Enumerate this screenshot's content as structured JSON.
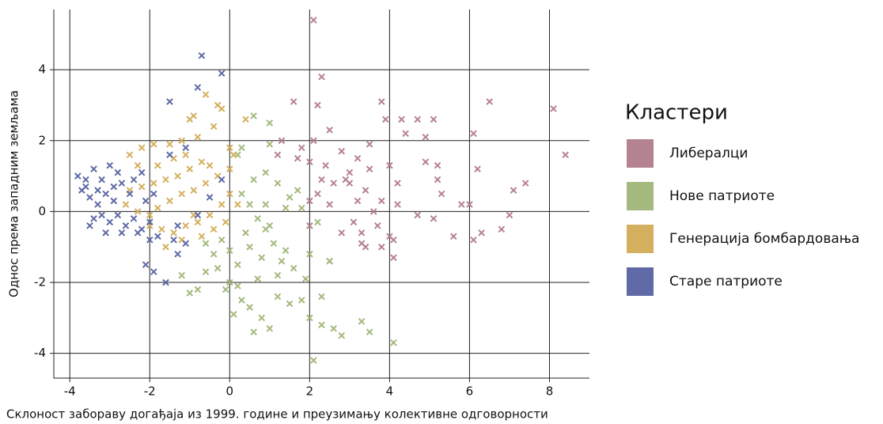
{
  "chart_data": {
    "type": "scatter",
    "xlabel": "Склоност забораву догађаја из 1999. године и преузимању колективне одговорности",
    "ylabel": "Однос према западним земљама",
    "legend_title": "Кластери",
    "legend": "right",
    "grid": true,
    "xlim": [
      -4.4,
      9.0
    ],
    "xticks": [
      -4,
      -2,
      0,
      2,
      4,
      6,
      8
    ],
    "ylim": [
      -4.7,
      5.7
    ],
    "yticks": [
      -4,
      -2,
      0,
      2,
      4
    ],
    "series": [
      {
        "name": "Либералци",
        "color": "#b5838f",
        "x": [
          2.1,
          2.3,
          2.2,
          1.6,
          3.8,
          3.9,
          4.3,
          4.7,
          5.1,
          6.5,
          8.1,
          8.4,
          6.1,
          4.9,
          4.4,
          3.5,
          2.5,
          2.1,
          1.8,
          1.3,
          1.2,
          1.7,
          2.0,
          2.4,
          2.8,
          3.2,
          3.5,
          4.0,
          4.9,
          5.2,
          6.2,
          2.3,
          2.6,
          3.0,
          3.4,
          3.8,
          4.2,
          5.2,
          7.1,
          7.4,
          2.0,
          2.2,
          2.5,
          3.2,
          3.6,
          4.2,
          4.7,
          5.3,
          5.8,
          6.0,
          7.0,
          5.1,
          2.0,
          2.8,
          3.3,
          3.7,
          4.0,
          4.1,
          5.6,
          6.1,
          6.3,
          6.8,
          3.3,
          3.4,
          3.8,
          4.1,
          2.5,
          3.1,
          2.9,
          3.0
        ],
        "values": [
          5.4,
          3.8,
          3.0,
          3.1,
          3.1,
          2.6,
          2.6,
          2.6,
          2.6,
          3.1,
          2.9,
          1.6,
          2.2,
          2.1,
          2.2,
          1.9,
          2.3,
          2.0,
          1.8,
          2.0,
          1.6,
          1.5,
          1.4,
          1.3,
          1.7,
          1.5,
          1.2,
          1.3,
          1.4,
          1.3,
          1.2,
          0.9,
          0.8,
          0.8,
          0.6,
          0.3,
          0.8,
          0.9,
          0.6,
          0.8,
          0.3,
          0.5,
          0.2,
          0.3,
          0.0,
          0.2,
          -0.1,
          0.5,
          0.2,
          0.2,
          -0.1,
          -0.2,
          -0.4,
          -0.6,
          -0.6,
          -0.4,
          -0.7,
          -0.8,
          -0.7,
          -0.8,
          -0.6,
          -0.5,
          -0.9,
          -1.0,
          -1.0,
          -1.3,
          -1.4,
          -0.3,
          0.9,
          1.1
        ]
      },
      {
        "name": "Нове патриоте",
        "color": "#a3b97e",
        "x": [
          -1.2,
          -1.0,
          -0.8,
          -0.6,
          -0.4,
          -0.2,
          0.0,
          0.0,
          0.2,
          0.3,
          0.1,
          0.5,
          0.6,
          0.8,
          1.0,
          1.2,
          1.5,
          1.8,
          2.0,
          2.1,
          2.3,
          2.6,
          2.8,
          3.3,
          3.5,
          4.1,
          2.3,
          1.9,
          1.6,
          1.4,
          1.1,
          0.9,
          0.7,
          0.5,
          0.3,
          0.6,
          0.9,
          1.2,
          1.5,
          1.8,
          2.2,
          2.5,
          0.2,
          0.6,
          1.0,
          0.4,
          0.8,
          1.2,
          -0.3,
          -0.1,
          0.7,
          1.0,
          1.4,
          1.7,
          2.0,
          -0.6,
          0.2,
          1.3,
          1.0,
          0.3,
          0.9,
          0.5
        ],
        "values": [
          -1.8,
          -2.3,
          -2.2,
          -1.7,
          -1.2,
          -0.8,
          -1.1,
          -2.0,
          -2.1,
          -2.5,
          -2.9,
          -2.7,
          -3.4,
          -3.0,
          -3.3,
          -2.4,
          -2.6,
          -2.5,
          -3.0,
          -4.2,
          -3.2,
          -3.3,
          -3.5,
          -3.1,
          -3.4,
          -3.7,
          -2.4,
          -1.9,
          -1.6,
          -1.1,
          -0.9,
          -0.5,
          -0.2,
          0.2,
          0.5,
          0.9,
          1.1,
          0.8,
          0.4,
          0.1,
          -0.3,
          -1.4,
          1.6,
          2.7,
          2.5,
          -0.6,
          -1.3,
          -1.8,
          -1.6,
          -2.2,
          -1.9,
          -0.4,
          0.1,
          0.6,
          -1.2,
          -0.9,
          -1.5,
          -1.4,
          1.9,
          1.8,
          0.2,
          -1.0
        ]
      },
      {
        "name": "Генерација бомбардовања",
        "color": "#d4b05e",
        "x": [
          -2.5,
          -2.2,
          -1.9,
          -1.4,
          -1.2,
          -1.0,
          -0.9,
          -0.8,
          -0.6,
          -0.3,
          -0.2,
          0.4,
          -0.4,
          0.0,
          -0.7,
          -1.0,
          -1.3,
          -1.6,
          -1.9,
          -2.2,
          -2.5,
          -2.6,
          -2.3,
          -2.0,
          -1.8,
          -1.5,
          -1.2,
          -0.9,
          -0.6,
          -0.3,
          0.0,
          0.2,
          -0.2,
          -0.5,
          -0.8,
          -1.1,
          -1.4,
          -1.7,
          -2.0,
          -1.6,
          -1.2,
          -0.7,
          -0.4,
          0.0,
          -1.1,
          -1.8,
          -2.3,
          -0.5,
          0.1,
          -1.5,
          -0.1,
          -0.9
        ],
        "values": [
          1.6,
          1.8,
          1.9,
          1.5,
          2.0,
          2.6,
          2.7,
          2.1,
          3.3,
          3.0,
          2.9,
          2.6,
          2.4,
          1.8,
          1.4,
          1.2,
          1.0,
          0.9,
          0.8,
          0.7,
          0.6,
          0.2,
          0.0,
          -0.1,
          0.1,
          0.3,
          0.5,
          0.6,
          0.8,
          1.0,
          0.5,
          0.2,
          0.2,
          -0.1,
          -0.3,
          -0.4,
          -0.6,
          -0.5,
          -0.4,
          -1.0,
          -0.8,
          -0.7,
          -0.5,
          1.2,
          1.6,
          1.3,
          1.3,
          1.3,
          1.6,
          1.9,
          -0.3,
          -0.1
        ]
      },
      {
        "name": "Старе патриоте",
        "color": "#5f6aa6",
        "x": [
          -3.8,
          -3.6,
          -3.4,
          -3.2,
          -3.0,
          -2.8,
          -3.7,
          -3.5,
          -3.3,
          -3.1,
          -2.9,
          -2.7,
          -2.5,
          -3.4,
          -3.2,
          -3.0,
          -2.8,
          -2.6,
          -2.4,
          -2.2,
          -2.0,
          -1.8,
          -3.5,
          -3.1,
          -2.7,
          -2.3,
          -2.0,
          -1.9,
          -2.1,
          -2.4,
          -2.9,
          -2.1,
          -1.9,
          -1.6,
          -1.3,
          -1.1,
          -1.4,
          -1.3,
          -0.8,
          -0.5,
          -1.5,
          -0.8,
          -0.7,
          -0.2,
          -1.1,
          -1.5,
          -2.2,
          -0.2,
          -3.6,
          -3.3
        ],
        "values": [
          1.0,
          0.7,
          1.2,
          0.9,
          1.3,
          1.1,
          0.6,
          0.4,
          0.2,
          0.5,
          0.3,
          0.8,
          0.5,
          -0.2,
          -0.1,
          -0.3,
          -0.1,
          -0.4,
          -0.2,
          -0.5,
          -0.8,
          -0.7,
          -0.4,
          -0.6,
          -0.6,
          -0.6,
          -0.3,
          0.5,
          0.3,
          0.9,
          0.7,
          -1.5,
          -1.7,
          -2.0,
          -1.2,
          -0.9,
          -0.8,
          -0.4,
          -0.1,
          0.4,
          3.1,
          3.5,
          4.4,
          3.9,
          1.8,
          1.6,
          1.1,
          0.9,
          0.9,
          0.6
        ]
      }
    ]
  }
}
